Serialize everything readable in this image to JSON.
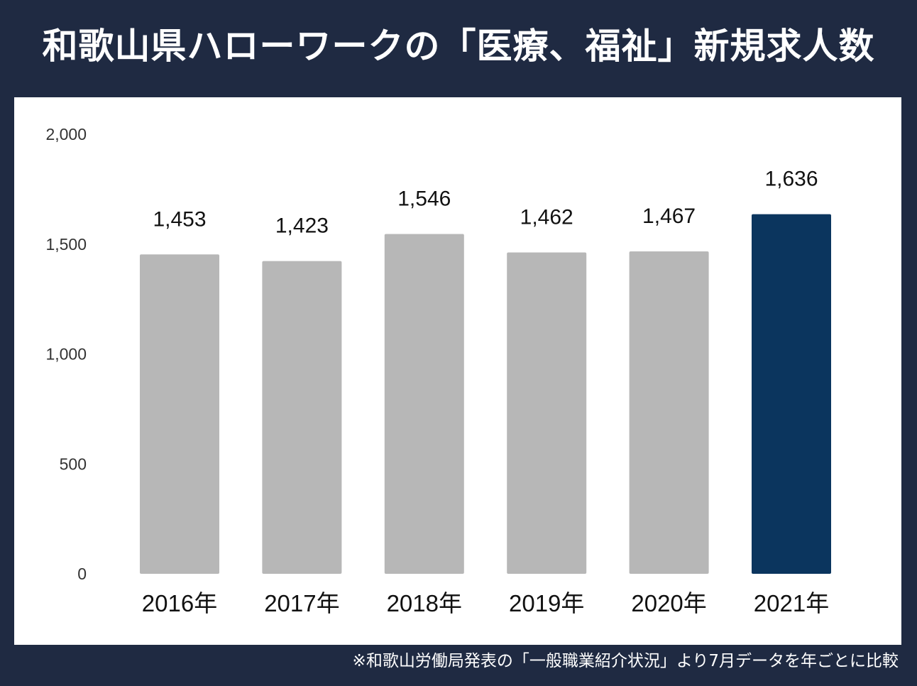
{
  "title": "和歌山県ハローワークの「医療、福祉」新規求人数",
  "footnote": "※和歌山労働局発表の「一般職業紹介状況」より7月データを年ごとに比較",
  "chart_data": {
    "type": "bar",
    "categories": [
      "2016年",
      "2017年",
      "2018年",
      "2019年",
      "2020年",
      "2021年"
    ],
    "values": [
      1453,
      1423,
      1546,
      1462,
      1467,
      1636
    ],
    "data_labels": [
      "1,453",
      "1,423",
      "1,546",
      "1,462",
      "1,467",
      "1,636"
    ],
    "ylim": [
      0,
      2000
    ],
    "yticks": [
      0,
      500,
      1000,
      1500,
      2000
    ],
    "ytick_labels": [
      "0",
      "500",
      "1,000",
      "1,500",
      "2,000"
    ],
    "grid": false,
    "colors": {
      "default": "#b7b7b7",
      "highlight": "#0b355e",
      "highlight_index": 5
    }
  }
}
